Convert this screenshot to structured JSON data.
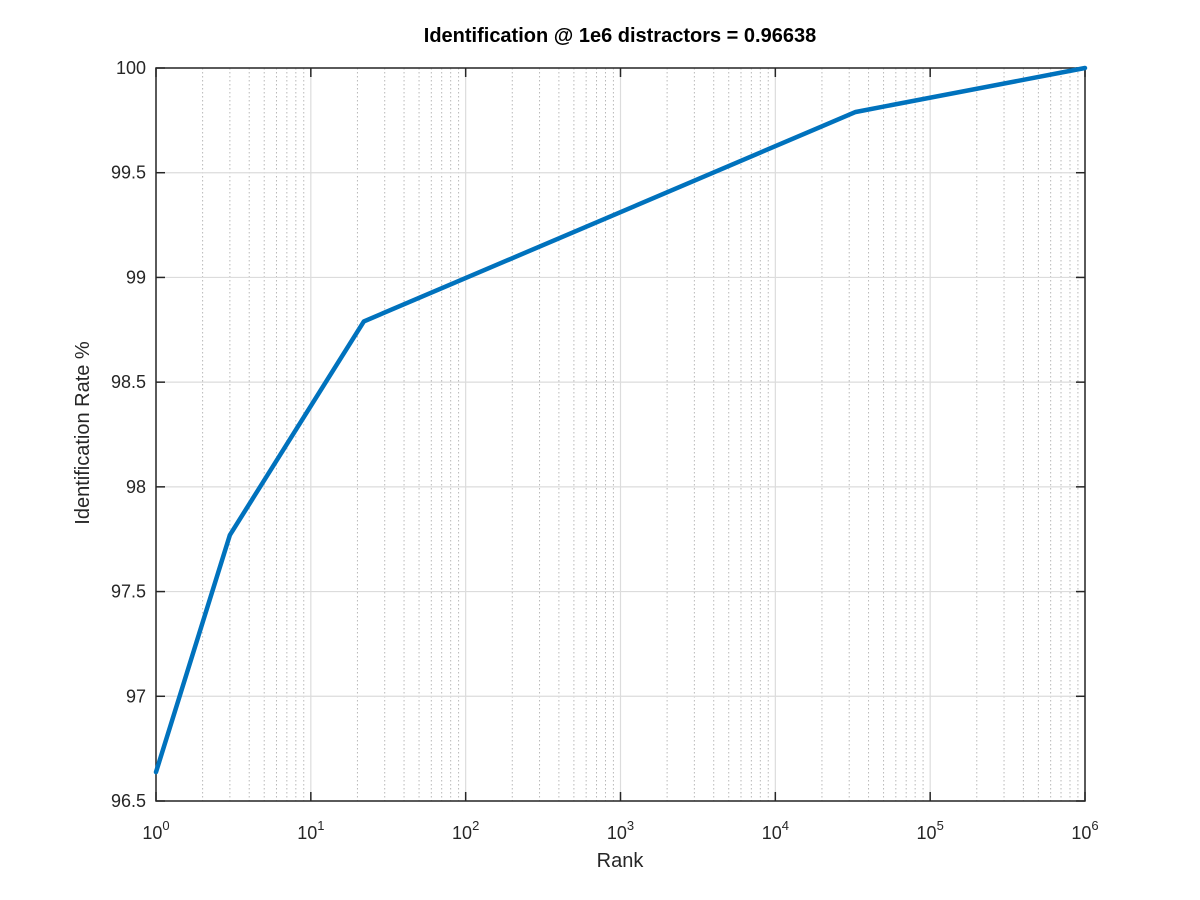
{
  "chart_data": {
    "type": "line",
    "title": "Identification @ 1e6 distractors = 0.96638",
    "xlabel": "Rank",
    "ylabel": "Identification Rate %",
    "xscale": "log",
    "xlim": [
      1,
      1000000
    ],
    "ylim": [
      96.5,
      100
    ],
    "xticks": [
      {
        "base": "10",
        "exp": "0"
      },
      {
        "base": "10",
        "exp": "1"
      },
      {
        "base": "10",
        "exp": "2"
      },
      {
        "base": "10",
        "exp": "3"
      },
      {
        "base": "10",
        "exp": "4"
      },
      {
        "base": "10",
        "exp": "5"
      },
      {
        "base": "10",
        "exp": "6"
      }
    ],
    "yticks": [
      "96.5",
      "97",
      "97.5",
      "98",
      "98.5",
      "99",
      "99.5",
      "100"
    ],
    "grid": true,
    "line_color": "#0072BD",
    "series": [
      {
        "x": [
          1,
          3,
          22,
          33000,
          1000000
        ],
        "y": [
          96.638,
          97.77,
          98.79,
          99.79,
          100
        ]
      }
    ]
  }
}
